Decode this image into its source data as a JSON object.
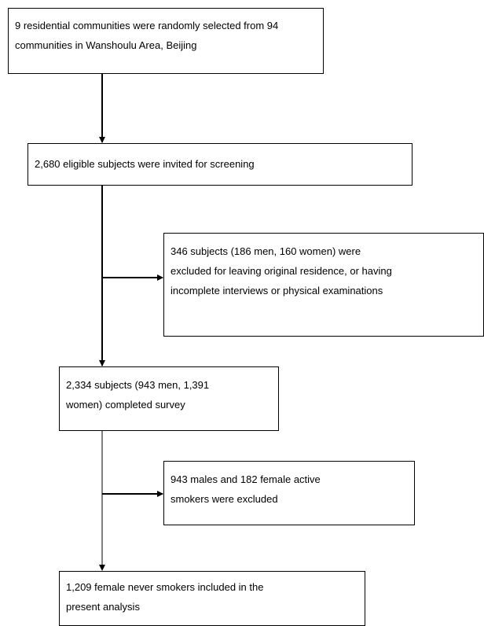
{
  "flowchart": {
    "steps": [
      {
        "text": "9 residential communities were randomly selected from 94\ncommunities in Wanshoulu Area, Beijing"
      },
      {
        "text": "2,680 eligible subjects were invited for screening"
      },
      {
        "text": "346 subjects (186 men, 160 women) were\nexcluded for leaving original residence, or having\nincomplete interviews or physical examinations"
      },
      {
        "text": "2,334 subjects (943 men, 1,391\nwomen) completed survey"
      },
      {
        "text": "943 males and 182 female active\nsmokers were excluded"
      },
      {
        "text": "1,209 female never smokers included in the\npresent analysis"
      }
    ]
  },
  "colors": {
    "line": "#000000",
    "box_border": "#000000",
    "background": "#ffffff"
  }
}
